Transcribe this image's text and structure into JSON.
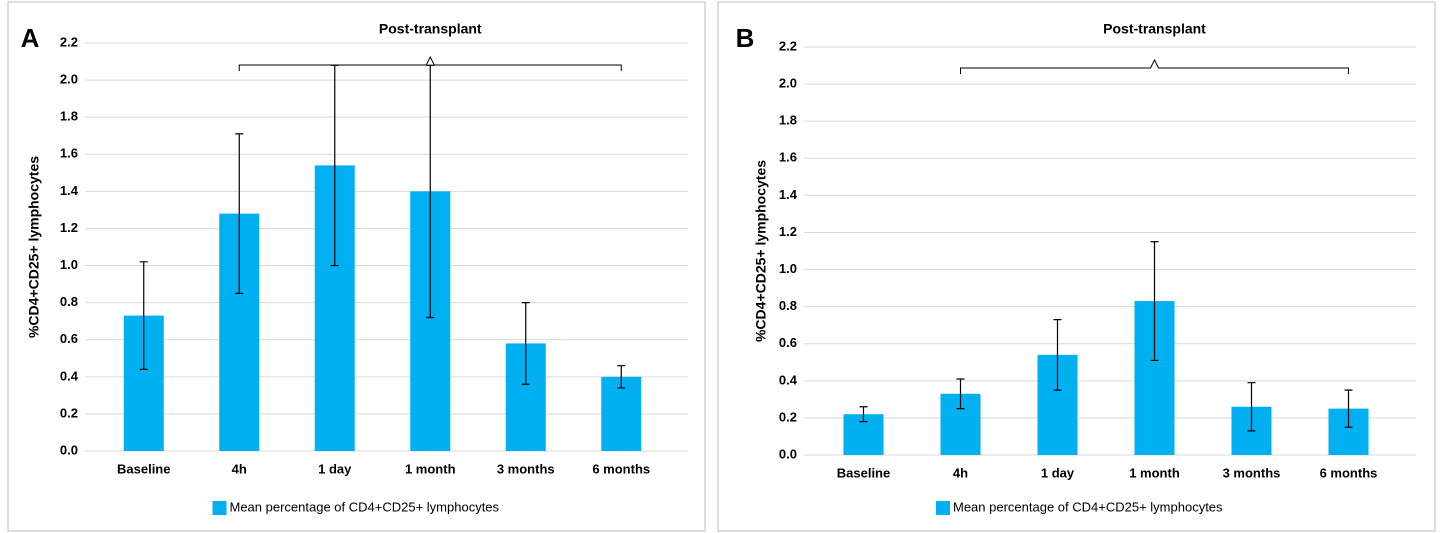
{
  "chart_data": [
    {
      "type": "bar",
      "panel_label": "A",
      "annotation": "Post-transplant",
      "y_label": "%CD4+CD25+ lymphocytes",
      "categories": [
        "Baseline",
        "4h",
        "1 day",
        "1 month",
        "3 months",
        "6 months"
      ],
      "series": [
        {
          "name": "Mean percentage of CD4+CD25+ lymphocytes",
          "color": "#00b0f0",
          "values": [
            0.73,
            1.28,
            1.54,
            1.4,
            0.58,
            0.4
          ],
          "errors": [
            0.29,
            0.43,
            0.54,
            0.68,
            0.22,
            0.06
          ]
        }
      ],
      "ylim": [
        0,
        2.2
      ],
      "yticks": [
        {
          "value": 0,
          "label": "0.0"
        },
        0.2,
        0.4,
        0.6,
        0.8,
        {
          "value": 1,
          "label": "1.0"
        },
        1.2,
        1.4,
        1.6,
        1.8,
        {
          "value": 2,
          "label": "2.0"
        },
        2.2
      ],
      "grid": true
    },
    {
      "type": "bar",
      "panel_label": "B",
      "annotation": "Post-transplant",
      "y_label": "%CD4+CD25+ lymphocytes",
      "categories": [
        "Baseline",
        "4h",
        "1 day",
        "1 month",
        "3 months",
        "6 months"
      ],
      "series": [
        {
          "name": "Mean percentage of CD4+CD25+ lymphocytes",
          "color": "#00b0f0",
          "values": [
            0.22,
            0.33,
            0.54,
            0.83,
            0.26,
            0.25
          ],
          "errors": [
            0.04,
            0.08,
            0.19,
            0.32,
            0.13,
            0.1
          ]
        }
      ],
      "ylim": [
        0,
        2.2
      ],
      "yticks": [
        {
          "value": 0,
          "label": "0.0"
        },
        0.2,
        0.4,
        0.6,
        0.8,
        {
          "value": 1,
          "label": "1.0"
        },
        1.2,
        1.4,
        1.6,
        1.8,
        {
          "value": 2,
          "label": "2.0"
        },
        2.2
      ],
      "grid": true
    }
  ]
}
